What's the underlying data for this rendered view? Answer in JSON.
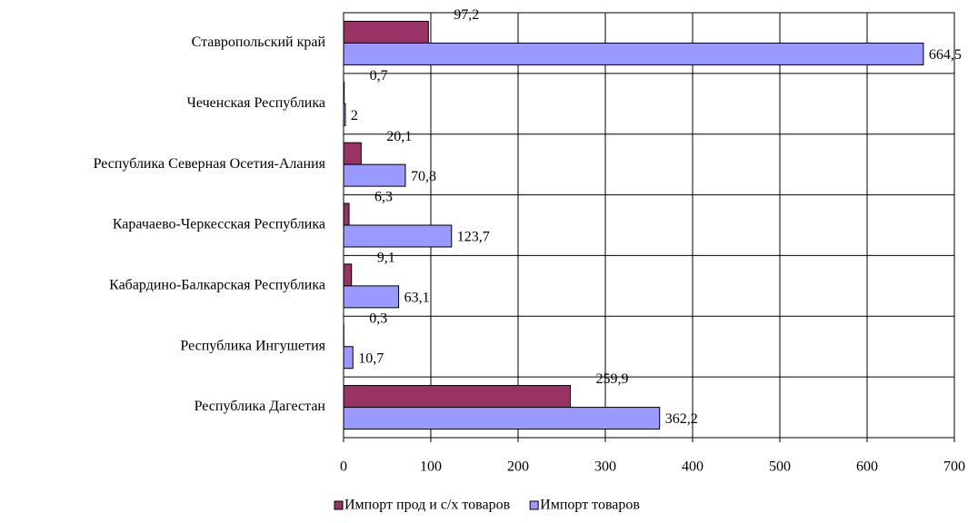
{
  "chart_data": {
    "type": "bar",
    "orientation": "horizontal",
    "categories": [
      "Ставропольский край",
      "Чеченская Республика",
      "Республика Северная Осетия-Алания",
      "Карачаево-Черкесская Республика",
      "Кабардино-Балкарская Республика",
      "Республика Ингушетия",
      "Республика Дагестан"
    ],
    "series": [
      {
        "name": "Импорт прод и с/х товаров",
        "color": "#993366",
        "values": [
          97.2,
          0.7,
          20.1,
          6.3,
          9.1,
          0.3,
          259.9
        ],
        "value_labels": [
          "97,2",
          "0,7",
          "20,1",
          "6,3",
          "9,1",
          "0,3",
          "259,9"
        ]
      },
      {
        "name": "Импорт товаров",
        "color": "#9999ff",
        "values": [
          664.5,
          2,
          70.8,
          123.7,
          63.1,
          10.7,
          362.2
        ],
        "value_labels": [
          "664,5",
          "2",
          "70,8",
          "123,7",
          "63,1",
          "10,7",
          "362,2"
        ]
      }
    ],
    "xlim": [
      0,
      700
    ],
    "xticks": [
      0,
      100,
      200,
      300,
      400,
      500,
      600,
      700
    ],
    "grid": true,
    "legend": "bottom"
  }
}
